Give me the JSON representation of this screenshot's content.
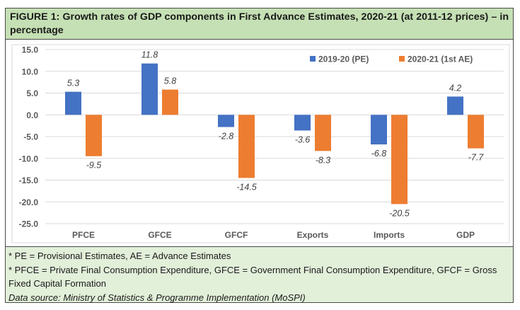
{
  "figure": {
    "title": "FIGURE 1: Growth rates of GDP components in First Advance Estimates, 2020-21 (at 2011-12 prices) – in percentage"
  },
  "chart_data": {
    "type": "bar",
    "title": "Growth rates of GDP components in First Advance Estimates, 2020-21 (at 2011-12 prices) – in percentage",
    "xlabel": "",
    "ylabel": "",
    "categories": [
      "PFCE",
      "GFCE",
      "GFCF",
      "Exports",
      "Imports",
      "GDP"
    ],
    "series": [
      {
        "name": "2019-20 (PE)",
        "color": "#4472c4",
        "values": [
          5.3,
          11.8,
          -2.8,
          -3.6,
          -6.8,
          4.2
        ]
      },
      {
        "name": "2020-21 (1st AE)",
        "color": "#ed7d31",
        "values": [
          -9.5,
          5.8,
          -14.5,
          -8.3,
          -20.5,
          -7.7
        ]
      }
    ],
    "ylim": [
      -25,
      15
    ],
    "yticks": [
      15,
      10,
      5,
      0,
      -5,
      -10,
      -15,
      -20,
      -25
    ],
    "ytick_labels": [
      "15.0",
      "10.0",
      "5.0",
      "0.0",
      "-5.0",
      "-10.0",
      "-15.0",
      "-20.0",
      "-25.0"
    ],
    "grid": true,
    "legend_position": "top-right",
    "data_labels": true
  },
  "footnotes": {
    "line1": "* PE = Provisional Estimates, AE = Advance Estimates",
    "line2": "* PFCE = Private Final Consumption Expenditure, GFCE = Government Final Consumption Expenditure, GFCF = Gross Fixed Capital Formation",
    "source": "Data source: Ministry of Statistics & Programme Implementation (MoSPI)"
  }
}
